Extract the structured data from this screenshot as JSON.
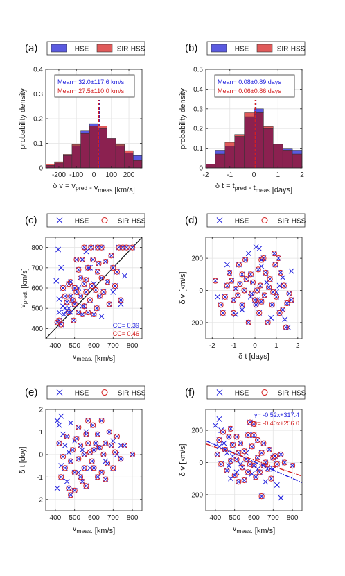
{
  "colors": {
    "hse": "#1f1fdd",
    "sir": "#d42020",
    "hse_fill": "#5a5ae0",
    "sir_fill": "#e05a5a",
    "overlap": "#8b2150"
  },
  "chart_data": [
    {
      "id": "a",
      "type": "bar",
      "panel_label": "(a)",
      "legend": [
        "HSE",
        "SIR-HSS"
      ],
      "xlabel": "δ v = v_pred - v_meas [km/s]",
      "ylabel": "probability density",
      "xlim": [
        -275,
        275
      ],
      "ylim": [
        0,
        0.4
      ],
      "xticks": [
        -200,
        -100,
        0,
        100,
        200
      ],
      "yticks": [
        0,
        0.1,
        0.2,
        0.3,
        0.4
      ],
      "bin_edges": [
        -275,
        -225,
        -175,
        -125,
        -75,
        -25,
        25,
        75,
        125,
        175,
        225,
        275
      ],
      "series": [
        {
          "name": "HSE",
          "values": [
            0.01,
            0.02,
            0.05,
            0.09,
            0.15,
            0.18,
            0.16,
            0.12,
            0.09,
            0.06,
            0.05
          ]
        },
        {
          "name": "SIR-HSS",
          "values": [
            0.015,
            0.025,
            0.055,
            0.095,
            0.14,
            0.17,
            0.17,
            0.12,
            0.095,
            0.07,
            0.03
          ]
        }
      ],
      "mean_lines": [
        32.0,
        27.5
      ],
      "annotations": [
        "Mean= 32.0±117.6 km/s",
        "Mean= 27.5±110.0 km/s"
      ]
    },
    {
      "id": "b",
      "type": "bar",
      "panel_label": "(b)",
      "legend": [
        "HSE",
        "SIR-HSS"
      ],
      "xlabel": "δ t = t_pred - t_meas [days]",
      "ylabel": "probability density",
      "xlim": [
        -2,
        2
      ],
      "ylim": [
        0,
        0.5
      ],
      "xticks": [
        -2,
        -1,
        0,
        1,
        2
      ],
      "yticks": [
        0,
        0.1,
        0.2,
        0.3,
        0.4,
        0.5
      ],
      "bin_edges": [
        -2,
        -1.6,
        -1.2,
        -0.8,
        -0.4,
        0,
        0.4,
        0.8,
        1.2,
        1.6,
        2
      ],
      "series": [
        {
          "name": "HSE",
          "values": [
            0.02,
            0.09,
            0.11,
            0.16,
            0.26,
            0.3,
            0.2,
            0.12,
            0.1,
            0.09
          ]
        },
        {
          "name": "SIR-HSS",
          "values": [
            0.02,
            0.07,
            0.13,
            0.17,
            0.28,
            0.28,
            0.21,
            0.12,
            0.09,
            0.07
          ]
        }
      ],
      "mean_lines": [
        0.08,
        0.06
      ],
      "annotations": [
        "Mean= 0.08±0.89 days",
        "Mean= 0.06±0.86 days"
      ]
    },
    {
      "id": "c",
      "type": "scatter",
      "panel_label": "(c)",
      "legend": [
        "HSE",
        "SIR-HSS"
      ],
      "xlabel": "v_meas. [km/s]",
      "ylabel": "v_pred. [km/s]",
      "xlim": [
        350,
        850
      ],
      "ylim": [
        350,
        850
      ],
      "xticks": [
        400,
        500,
        600,
        700,
        800
      ],
      "yticks": [
        400,
        500,
        600,
        700,
        800
      ],
      "reference_line": "y = x",
      "annotations": [
        "CC= 0.39",
        "CC= 0.46"
      ],
      "hse_only": [
        [
          415,
          790
        ],
        [
          405,
          635
        ],
        [
          420,
          545
        ],
        [
          430,
          700
        ],
        [
          440,
          510
        ],
        [
          450,
          500
        ],
        [
          460,
          490
        ],
        [
          470,
          500
        ],
        [
          480,
          480
        ],
        [
          520,
          600
        ],
        [
          540,
          510
        ],
        [
          560,
          780
        ],
        [
          580,
          700
        ],
        [
          600,
          620
        ],
        [
          640,
          460
        ],
        [
          700,
          580
        ],
        [
          740,
          520
        ],
        [
          760,
          660
        ],
        [
          420,
          480
        ],
        [
          445,
          470
        ]
      ],
      "pairs": [
        [
          410,
          430
        ],
        [
          420,
          440
        ],
        [
          430,
          420
        ],
        [
          440,
          600
        ],
        [
          450,
          560
        ],
        [
          460,
          530
        ],
        [
          470,
          620
        ],
        [
          470,
          480
        ],
        [
          480,
          630
        ],
        [
          480,
          560
        ],
        [
          490,
          540
        ],
        [
          495,
          440
        ],
        [
          500,
          600
        ],
        [
          500,
          520
        ],
        [
          510,
          580
        ],
        [
          510,
          740
        ],
        [
          520,
          690
        ],
        [
          520,
          480
        ],
        [
          530,
          650
        ],
        [
          530,
          560
        ],
        [
          540,
          740
        ],
        [
          540,
          470
        ],
        [
          550,
          800
        ],
        [
          550,
          620
        ],
        [
          550,
          510
        ],
        [
          560,
          580
        ],
        [
          560,
          640
        ],
        [
          570,
          480
        ],
        [
          570,
          700
        ],
        [
          580,
          540
        ],
        [
          585,
          800
        ],
        [
          590,
          610
        ],
        [
          595,
          740
        ],
        [
          600,
          470
        ],
        [
          610,
          590
        ],
        [
          615,
          500
        ],
        [
          620,
          800
        ],
        [
          620,
          680
        ],
        [
          625,
          720
        ],
        [
          630,
          560
        ],
        [
          640,
          800
        ],
        [
          640,
          650
        ],
        [
          650,
          580
        ],
        [
          660,
          730
        ],
        [
          670,
          630
        ],
        [
          680,
          520
        ],
        [
          690,
          760
        ],
        [
          700,
          700
        ],
        [
          710,
          610
        ],
        [
          720,
          680
        ],
        [
          730,
          800
        ],
        [
          740,
          540
        ],
        [
          750,
          800
        ],
        [
          770,
          800
        ],
        [
          800,
          800
        ]
      ]
    },
    {
      "id": "d",
      "type": "scatter",
      "panel_label": "(d)",
      "legend": [
        "HSE",
        "SIR-HSS"
      ],
      "xlabel": "δ t [days]",
      "ylabel": "δ v [km/s]",
      "xlim": [
        -2.3,
        2.2
      ],
      "ylim": [
        -300,
        330
      ],
      "xticks": [
        -2,
        -1,
        0,
        1,
        2
      ],
      "yticks": [
        -200,
        0,
        200
      ],
      "hse_only": [
        [
          -1.75,
          -40
        ],
        [
          -1.3,
          160
        ],
        [
          -0.9,
          -150
        ],
        [
          -0.6,
          -120
        ],
        [
          -0.3,
          230
        ],
        [
          0.05,
          270
        ],
        [
          0.2,
          260
        ],
        [
          0.3,
          150
        ],
        [
          0.55,
          50
        ],
        [
          0.75,
          -170
        ],
        [
          1.15,
          30
        ],
        [
          1.3,
          80
        ],
        [
          1.4,
          -180
        ],
        [
          1.55,
          -230
        ],
        [
          1.7,
          120
        ],
        [
          1.0,
          -10
        ],
        [
          0.1,
          -60
        ],
        [
          -0.2,
          -40
        ]
      ],
      "pairs": [
        [
          -1.85,
          60
        ],
        [
          -1.6,
          -90
        ],
        [
          -1.5,
          -140
        ],
        [
          -1.4,
          -40
        ],
        [
          -1.3,
          30
        ],
        [
          -1.2,
          110
        ],
        [
          -1.1,
          60
        ],
        [
          -1.0,
          -60
        ],
        [
          -0.9,
          10
        ],
        [
          -0.8,
          -30
        ],
        [
          -0.75,
          160
        ],
        [
          -0.7,
          40
        ],
        [
          -0.6,
          -90
        ],
        [
          -0.5,
          0
        ],
        [
          -0.45,
          190
        ],
        [
          -0.4,
          70
        ],
        [
          -0.3,
          -200
        ],
        [
          -0.2,
          100
        ],
        [
          -0.15,
          -20
        ],
        [
          -0.1,
          50
        ],
        [
          0.0,
          -60
        ],
        [
          0.05,
          -90
        ],
        [
          0.1,
          0
        ],
        [
          0.15,
          130
        ],
        [
          0.2,
          -140
        ],
        [
          0.25,
          30
        ],
        [
          0.3,
          -70
        ],
        [
          0.4,
          200
        ],
        [
          0.45,
          -30
        ],
        [
          0.5,
          110
        ],
        [
          0.6,
          -200
        ],
        [
          0.65,
          20
        ],
        [
          0.7,
          70
        ],
        [
          0.8,
          -90
        ],
        [
          0.9,
          230
        ],
        [
          0.95,
          160
        ],
        [
          1.0,
          -40
        ],
        [
          1.1,
          200
        ],
        [
          1.2,
          110
        ],
        [
          1.3,
          -120
        ],
        [
          1.35,
          30
        ],
        [
          1.45,
          -230
        ],
        [
          1.5,
          -80
        ],
        [
          1.6,
          -20
        ],
        [
          1.7,
          -60
        ],
        [
          -1.0,
          -140
        ],
        [
          -0.6,
          100
        ],
        [
          0.3,
          190
        ],
        [
          0.85,
          -10
        ],
        [
          1.15,
          -140
        ]
      ]
    },
    {
      "id": "e",
      "type": "scatter",
      "panel_label": "(e)",
      "legend": [
        "HSE",
        "SIR-HSS"
      ],
      "xlabel": "v_meas. [km/s]",
      "ylabel": "δ t [doy]",
      "xlim": [
        350,
        850
      ],
      "ylim": [
        -2.5,
        2.0
      ],
      "xticks": [
        400,
        500,
        600,
        700,
        800
      ],
      "yticks": [
        -2,
        -1,
        0,
        1,
        2
      ],
      "hse_only": [
        [
          410,
          1.5
        ],
        [
          420,
          1.3
        ],
        [
          430,
          1.7
        ],
        [
          440,
          0.9
        ],
        [
          450,
          0.4
        ],
        [
          460,
          -1.2
        ],
        [
          470,
          0.1
        ],
        [
          480,
          1.4
        ],
        [
          500,
          0.6
        ],
        [
          520,
          -0.8
        ],
        [
          540,
          0.2
        ],
        [
          560,
          1.0
        ],
        [
          580,
          -0.6
        ],
        [
          620,
          0.3
        ],
        [
          660,
          -0.3
        ],
        [
          700,
          0.6
        ],
        [
          720,
          0.0
        ],
        [
          740,
          0.4
        ],
        [
          410,
          -1.5
        ],
        [
          430,
          -0.5
        ]
      ],
      "pairs": [
        [
          420,
          0.5
        ],
        [
          430,
          -1.0
        ],
        [
          440,
          -0.1
        ],
        [
          450,
          -0.6
        ],
        [
          460,
          0.8
        ],
        [
          470,
          -1.5
        ],
        [
          480,
          -0.3
        ],
        [
          490,
          0.2
        ],
        [
          500,
          -1.6
        ],
        [
          500,
          -0.8
        ],
        [
          510,
          0.7
        ],
        [
          520,
          -0.2
        ],
        [
          520,
          1.2
        ],
        [
          530,
          0.4
        ],
        [
          540,
          -1.2
        ],
        [
          550,
          0.0
        ],
        [
          550,
          -0.6
        ],
        [
          560,
          -1.4
        ],
        [
          570,
          0.5
        ],
        [
          570,
          1.5
        ],
        [
          580,
          0.1
        ],
        [
          590,
          -0.3
        ],
        [
          595,
          1.3
        ],
        [
          600,
          -0.6
        ],
        [
          610,
          0.5
        ],
        [
          620,
          -1.0
        ],
        [
          620,
          0.9
        ],
        [
          630,
          0.3
        ],
        [
          640,
          -0.8
        ],
        [
          640,
          1.5
        ],
        [
          650,
          0.0
        ],
        [
          660,
          0.5
        ],
        [
          670,
          -0.4
        ],
        [
          680,
          1.0
        ],
        [
          690,
          0.4
        ],
        [
          700,
          -0.6
        ],
        [
          710,
          0.1
        ],
        [
          720,
          0.8
        ],
        [
          740,
          -0.2
        ],
        [
          760,
          0.4
        ],
        [
          800,
          0.0
        ],
        [
          480,
          -1.8
        ],
        [
          530,
          -1.0
        ],
        [
          600,
          0.2
        ],
        [
          660,
          -1.1
        ],
        [
          560,
          0.9
        ]
      ]
    },
    {
      "id": "f",
      "type": "scatter",
      "panel_label": "(f)",
      "legend": [
        "HSE",
        "SIR-HSS"
      ],
      "xlabel": "v_meas. [km/s]",
      "ylabel": "δ v [km/s]",
      "xlim": [
        350,
        850
      ],
      "ylim": [
        -300,
        330
      ],
      "xticks": [
        400,
        500,
        600,
        700,
        800
      ],
      "yticks": [
        -200,
        0,
        200
      ],
      "fits": [
        {
          "name": "HSE",
          "slope": -0.52,
          "intercept": 317.4,
          "label": "y= -0.52x+317.4"
        },
        {
          "name": "SIR-HSS",
          "slope": -0.4,
          "intercept": 256.0,
          "label": "y= -0.40x+256.0"
        }
      ],
      "hse_only": [
        [
          400,
          230
        ],
        [
          420,
          270
        ],
        [
          430,
          200
        ],
        [
          445,
          120
        ],
        [
          460,
          60
        ],
        [
          470,
          -20
        ],
        [
          490,
          40
        ],
        [
          510,
          -60
        ],
        [
          530,
          -10
        ],
        [
          560,
          60
        ],
        [
          590,
          -70
        ],
        [
          620,
          -40
        ],
        [
          660,
          -120
        ],
        [
          700,
          -40
        ],
        [
          740,
          -220
        ],
        [
          720,
          -140
        ],
        [
          480,
          -100
        ],
        [
          420,
          100
        ]
      ],
      "pairs": [
        [
          410,
          50
        ],
        [
          420,
          140
        ],
        [
          430,
          -10
        ],
        [
          440,
          190
        ],
        [
          450,
          80
        ],
        [
          460,
          -50
        ],
        [
          470,
          160
        ],
        [
          480,
          10
        ],
        [
          490,
          110
        ],
        [
          500,
          -80
        ],
        [
          510,
          160
        ],
        [
          510,
          20
        ],
        [
          520,
          60
        ],
        [
          530,
          120
        ],
        [
          540,
          -30
        ],
        [
          550,
          70
        ],
        [
          550,
          -110
        ],
        [
          560,
          20
        ],
        [
          570,
          170
        ],
        [
          570,
          -60
        ],
        [
          580,
          -10
        ],
        [
          590,
          100
        ],
        [
          600,
          -20
        ],
        [
          600,
          240
        ],
        [
          610,
          -90
        ],
        [
          620,
          30
        ],
        [
          620,
          140
        ],
        [
          630,
          -60
        ],
        [
          640,
          60
        ],
        [
          640,
          -210
        ],
        [
          650,
          120
        ],
        [
          660,
          0
        ],
        [
          670,
          -40
        ],
        [
          680,
          80
        ],
        [
          690,
          -100
        ],
        [
          700,
          30
        ],
        [
          710,
          40
        ],
        [
          720,
          -10
        ],
        [
          740,
          50
        ],
        [
          760,
          0
        ],
        [
          800,
          -20
        ],
        [
          520,
          -120
        ],
        [
          580,
          250
        ],
        [
          600,
          170
        ],
        [
          650,
          -20
        ],
        [
          480,
          210
        ]
      ]
    }
  ]
}
